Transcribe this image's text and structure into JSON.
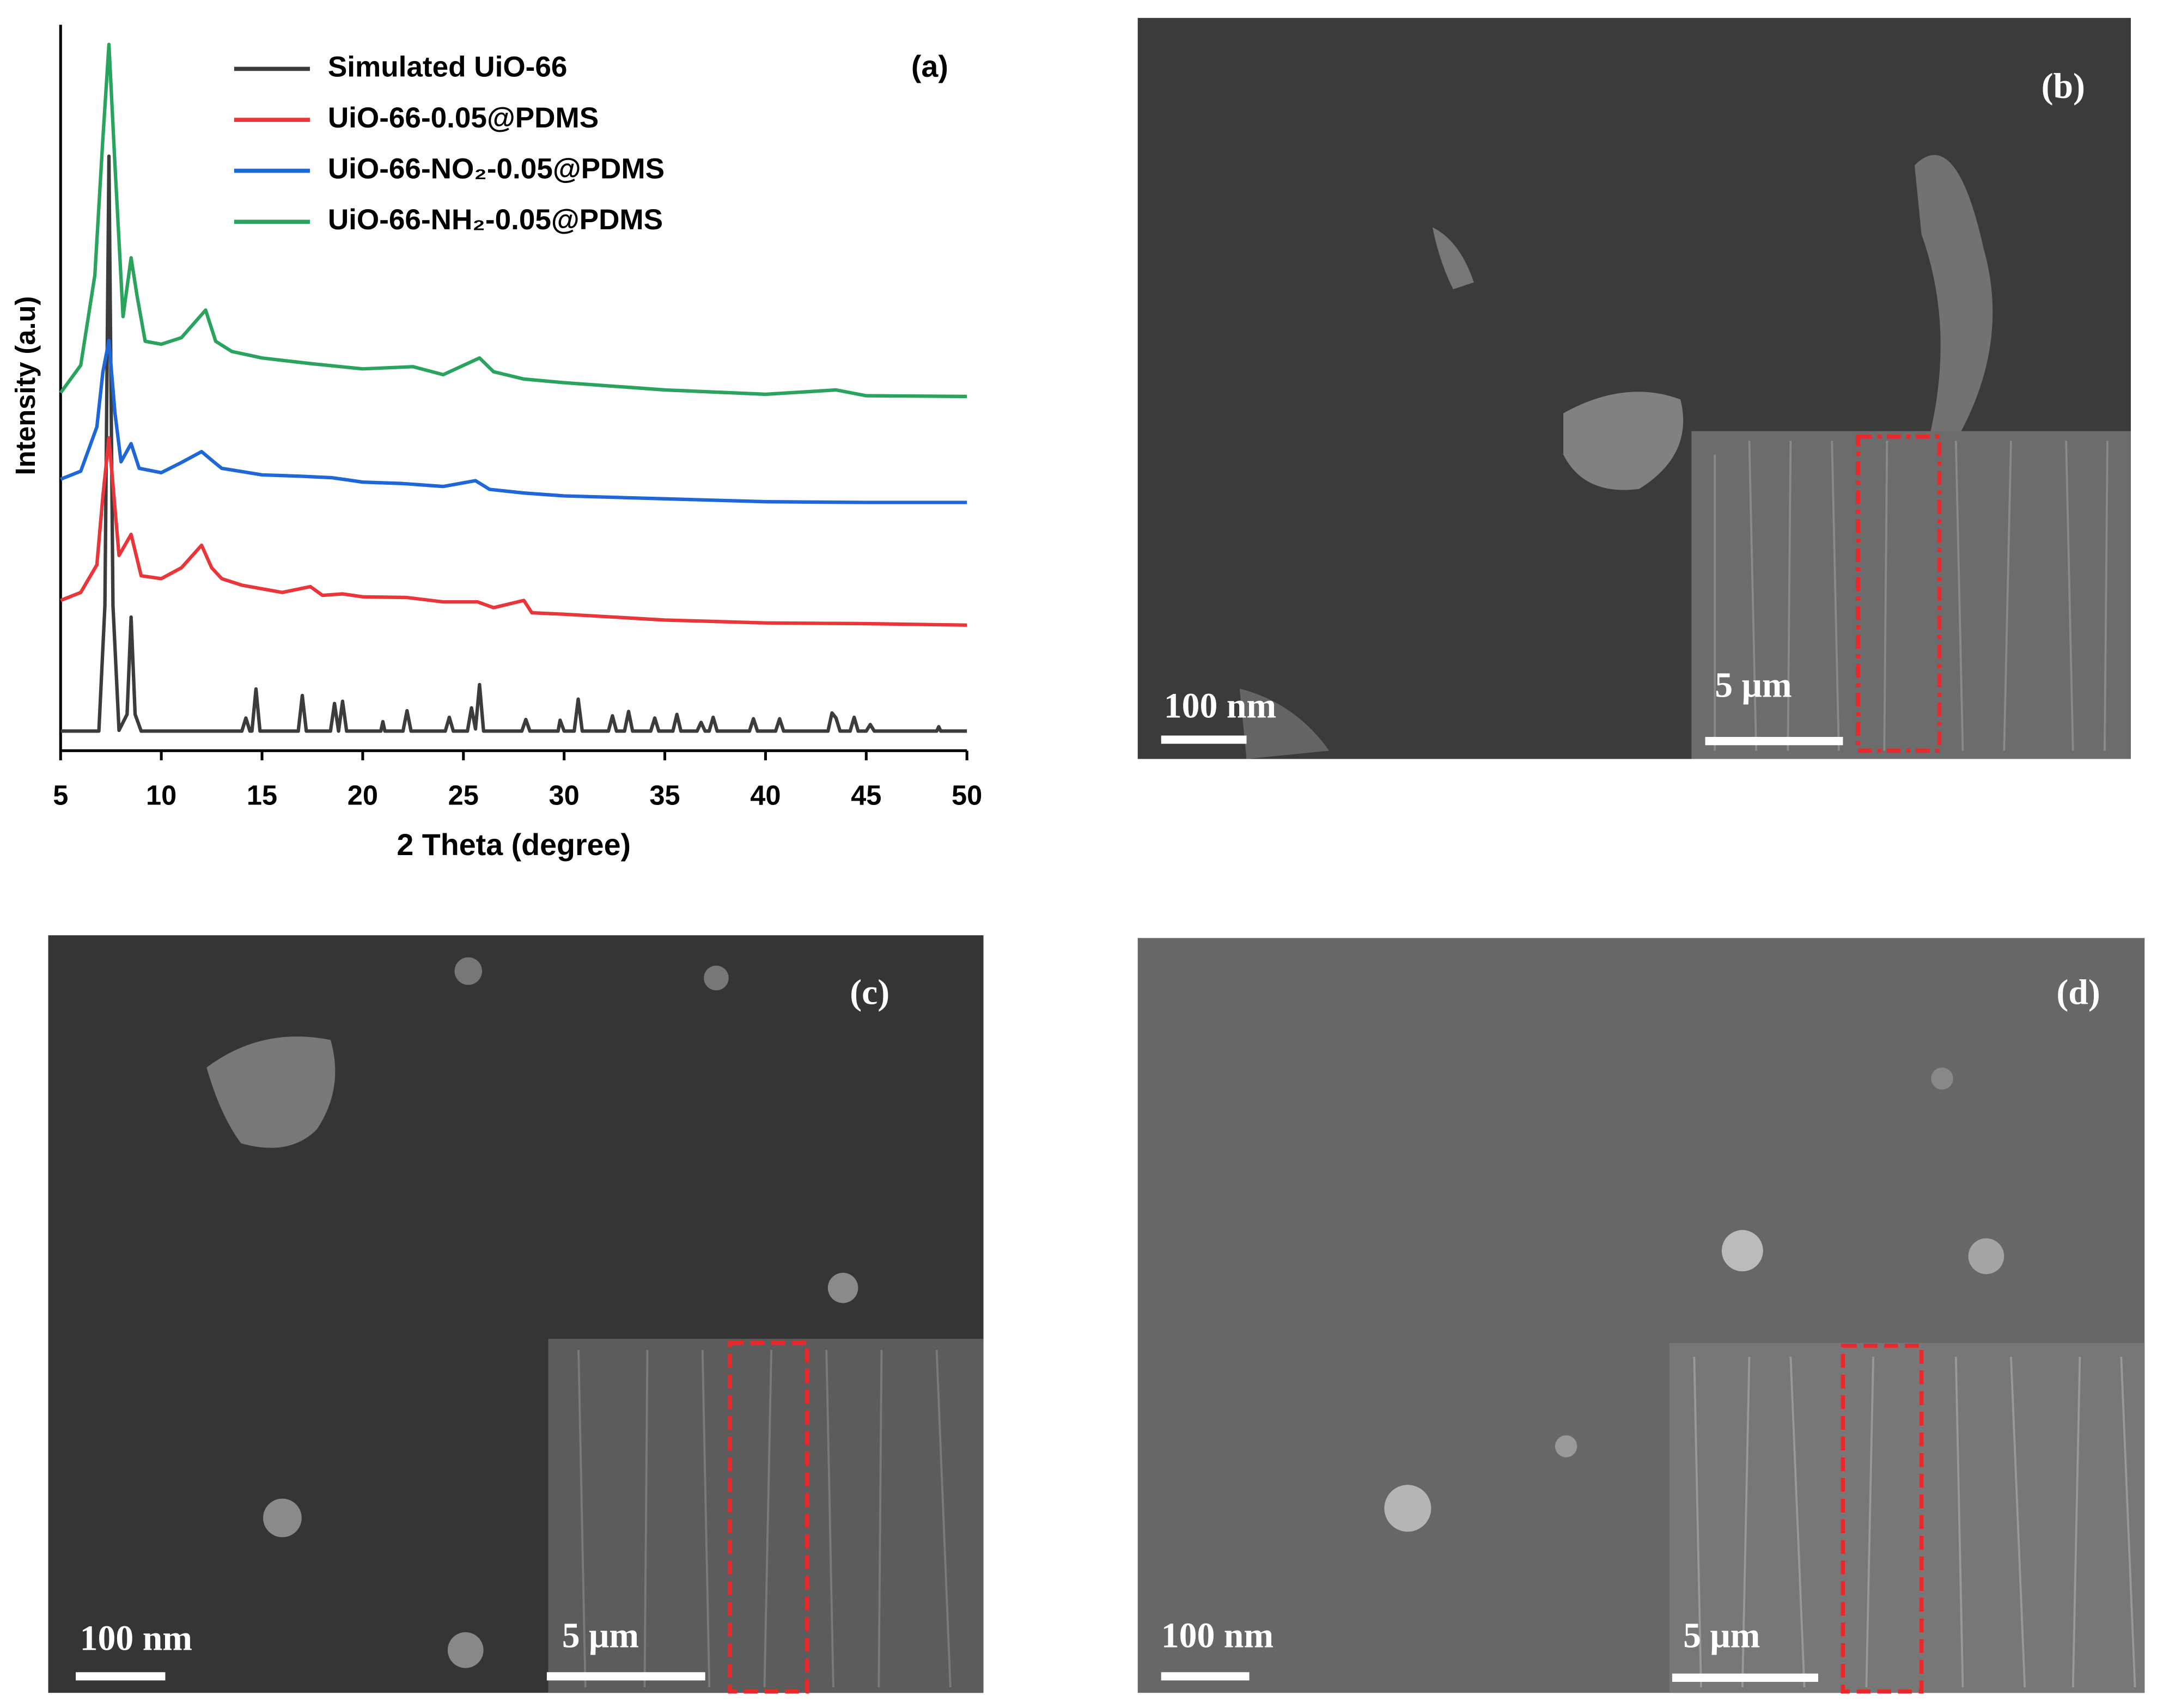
{
  "chart_data": {
    "type": "line",
    "annotation": "(a)",
    "x_label": "2 Theta (degree)",
    "y_label": "Intensity (a.u)",
    "xlim": [
      5,
      50
    ],
    "xticks": [
      5,
      10,
      15,
      20,
      25,
      30,
      35,
      40,
      45,
      50
    ],
    "ylim": [
      0,
      100
    ],
    "series": [
      {
        "name": "Simulated UiO-66",
        "color": "#3c3c3c",
        "x": [
          5,
          6.9,
          7.2,
          7.4,
          7.6,
          7.9,
          8.3,
          8.5,
          8.7,
          9.0,
          14.0,
          14.2,
          14.4,
          14.5,
          14.7,
          14.9,
          16.8,
          17.0,
          17.2,
          18.4,
          18.6,
          18.8,
          19.0,
          19.2,
          20.9,
          21.0,
          21.1,
          22.0,
          22.2,
          22.4,
          24.1,
          24.3,
          24.5,
          25.2,
          25.4,
          25.6,
          25.8,
          26.0,
          27.9,
          28.1,
          28.3,
          29.7,
          29.8,
          30.0,
          30.5,
          30.7,
          30.9,
          32.2,
          32.4,
          32.6,
          33.0,
          33.2,
          33.4,
          34.3,
          34.5,
          34.7,
          35.4,
          35.6,
          35.8,
          36.6,
          36.8,
          37.0,
          37.2,
          37.4,
          37.6,
          39.2,
          39.4,
          39.6,
          40.5,
          40.7,
          40.9,
          43.1,
          43.3,
          43.5,
          43.7,
          44.2,
          44.4,
          44.6,
          45.0,
          45.2,
          45.4,
          48.5,
          48.6,
          48.7,
          50
        ],
        "values": [
          2.7,
          2.7,
          20,
          81.9,
          20,
          2.8,
          5,
          18.4,
          5,
          2.7,
          2.7,
          4.5,
          2.7,
          2.7,
          8.5,
          2.7,
          2.7,
          7.6,
          2.7,
          2.7,
          6.5,
          2.7,
          6.8,
          2.7,
          2.7,
          4,
          2.7,
          2.7,
          5.5,
          2.7,
          2.7,
          4.6,
          2.7,
          2.7,
          5.9,
          3,
          9.1,
          2.7,
          2.7,
          4.3,
          2.7,
          2.7,
          4.2,
          2.7,
          2.7,
          7.1,
          2.7,
          2.7,
          4.8,
          2.7,
          2.7,
          5.4,
          2.7,
          2.7,
          4.5,
          2.7,
          2.7,
          5,
          2.7,
          2.7,
          3.9,
          2.7,
          2.7,
          4.6,
          2.7,
          2.7,
          4.4,
          2.7,
          2.7,
          4.4,
          2.7,
          2.7,
          5.2,
          4.5,
          2.7,
          2.7,
          4.6,
          2.7,
          2.7,
          3.6,
          2.7,
          2.7,
          3.3,
          2.7,
          2.7
        ]
      },
      {
        "name": "UiO-66-0.05@PDMS",
        "color": "#e8363a",
        "x": [
          5,
          6,
          6.8,
          7.1,
          7.4,
          7.9,
          8.5,
          9.0,
          10,
          11,
          12.0,
          12.5,
          13,
          14,
          16,
          17.4,
          18,
          19,
          20,
          22.2,
          24,
          25.7,
          26.5,
          28.0,
          28.4,
          30,
          35,
          40,
          45,
          50
        ],
        "values": [
          20.7,
          21.8,
          25.6,
          35.1,
          43.1,
          26.9,
          29.8,
          24.1,
          23.7,
          25.2,
          28.3,
          25.2,
          23.7,
          22.8,
          21.8,
          22.6,
          21.4,
          21.6,
          21.2,
          21.1,
          20.5,
          20.5,
          19.7,
          20.7,
          19,
          18.8,
          18,
          17.6,
          17.5,
          17.3
        ]
      },
      {
        "name": "UiO-66-NO₂-0.05@PDMS",
        "color": "#1f66d6",
        "x": [
          5,
          6,
          6.8,
          7.1,
          7.4,
          7.7,
          8.0,
          8.5,
          8.9,
          10,
          11,
          12.0,
          12.6,
          13,
          15,
          17,
          18.5,
          20,
          22,
          24,
          25.6,
          26.3,
          28,
          30,
          35,
          40,
          45,
          50
        ],
        "values": [
          37.4,
          38.5,
          44.6,
          52.2,
          56.5,
          46.5,
          39.8,
          42.3,
          38.9,
          38.3,
          39.7,
          41.2,
          39.8,
          38.9,
          38,
          37.8,
          37.6,
          37,
          36.8,
          36.4,
          37.2,
          36,
          35.5,
          35.1,
          34.7,
          34.3,
          34.2,
          34.2
        ]
      },
      {
        "name": "UiO-66-NH₂-0.05@PDMS",
        "color": "#2aa35e",
        "x": [
          5,
          6,
          6.7,
          7.1,
          7.4,
          7.7,
          8.1,
          8.5,
          8.8,
          9.2,
          10,
          11,
          12.2,
          12.7,
          13.5,
          15,
          17.5,
          20,
          22.5,
          24,
          25.8,
          26.5,
          28,
          30,
          33,
          35,
          40,
          43.5,
          45,
          50
        ],
        "values": [
          49.3,
          53.1,
          65.5,
          84.4,
          97.3,
          80.6,
          59.8,
          67.9,
          62.6,
          56.4,
          56,
          56.9,
          60.7,
          56.4,
          55,
          54.1,
          53.3,
          52.6,
          52.9,
          51.8,
          54.1,
          52.2,
          51.2,
          50.7,
          50.1,
          49.7,
          49.1,
          49.7,
          48.9,
          48.8
        ]
      }
    ]
  },
  "panels": [
    {
      "label": "(b)",
      "scale_bar": "100 nm",
      "inset_scale_bar": "5 μm"
    },
    {
      "label": "(c)",
      "scale_bar": "100 nm",
      "inset_scale_bar": "5 μm"
    },
    {
      "label": "(d)",
      "scale_bar": "100 nm",
      "inset_scale_bar": "5 μm"
    }
  ]
}
